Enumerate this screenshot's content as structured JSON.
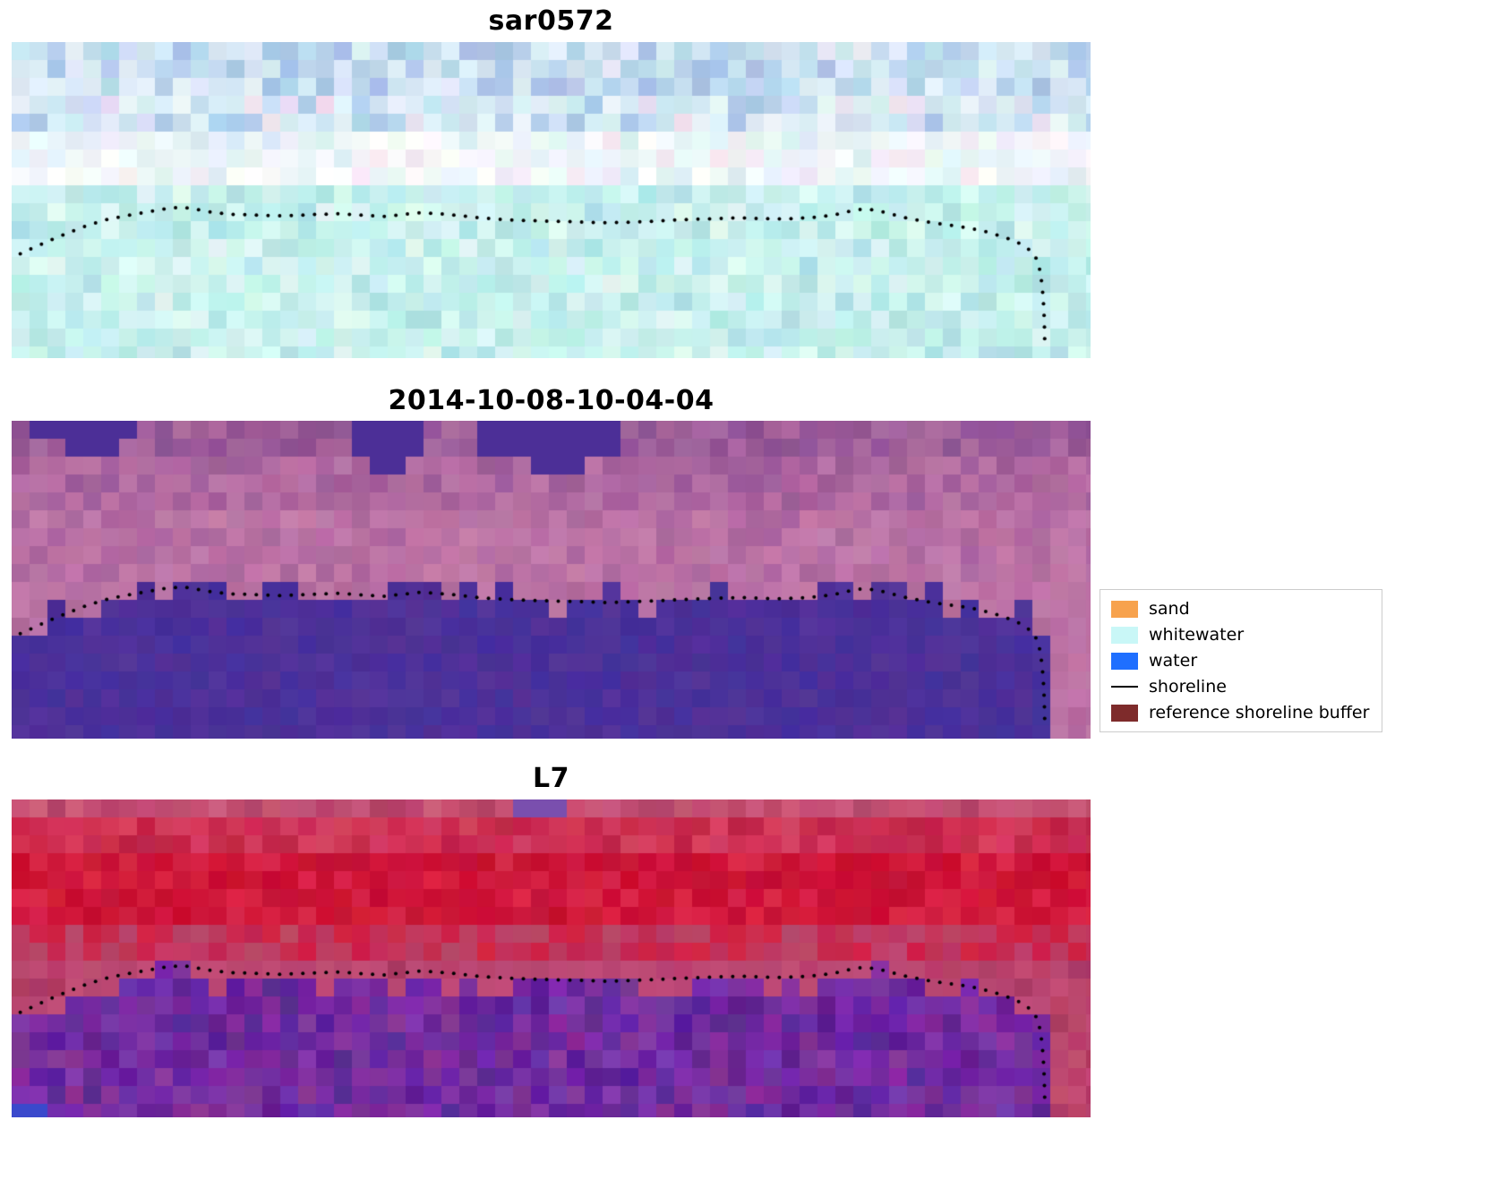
{
  "page": {
    "background": "#ffffff"
  },
  "chart_data": {
    "type": "heatmap",
    "description": "Three stacked pixelated coastal image panels with the same detected shoreline overlaid as small black dots; a legend at center-right explains classification colors.",
    "panels": [
      {
        "title": "sar0572",
        "seed": 7,
        "block_size": 20,
        "band_jitter": 7,
        "bands": [
          {
            "until": 0.14,
            "colors": [
              "#cfe4f2",
              "#b9cfec",
              "#a8c2e6",
              "#d9e9f6",
              "#c2dcf0",
              "#e3eef8",
              "#b3d6ea"
            ]
          },
          {
            "until": 0.3,
            "colors": [
              "#dcedf6",
              "#c9e2f2",
              "#b3d2ec",
              "#ecdff2",
              "#cfe9f0",
              "#abc9e8",
              "#e8f3fa",
              "#d5e0f3"
            ]
          },
          {
            "until": 0.46,
            "colors": [
              "#f3fafc",
              "#e7f4f9",
              "#fdfeff",
              "#ddeef4",
              "#f4ecf6",
              "#eaf7f5",
              "#f0f6fb"
            ]
          },
          {
            "until": 1.01,
            "colors": [
              "#c6f0ed",
              "#baebe8",
              "#d2f5f1",
              "#b0e3e4",
              "#ddf8f4",
              "#c9f2ef",
              "#bfeeec",
              "#cdf4ef"
            ]
          }
        ],
        "water": null,
        "patches": []
      },
      {
        "title": "2014-10-08-10-04-04",
        "seed": 21,
        "block_size": 20,
        "band_jitter": 5,
        "bands": [
          {
            "until": 0.12,
            "colors": [
              "#9a5a96",
              "#a3629c",
              "#8e5192",
              "#ab6aa0",
              "#96569a"
            ]
          },
          {
            "until": 0.3,
            "colors": [
              "#aa639c",
              "#b46ca2",
              "#9f5c98",
              "#ba73a6",
              "#a4609c",
              "#af68a0"
            ]
          },
          {
            "until": 0.48,
            "colors": [
              "#b86fa4",
              "#c078aa",
              "#ad669e",
              "#bb74a5",
              "#c47cab",
              "#b26aa0"
            ]
          },
          {
            "until": 1.01,
            "colors": [
              "#b86fa2",
              "#c078a8",
              "#b2689b",
              "#bd75a6"
            ]
          }
        ],
        "water": {
          "colors": [
            "#4c2f97",
            "#46309c",
            "#523399"
          ],
          "jitter": 5,
          "offset": -0.02,
          "noise": 0.045
        },
        "patches": [
          {
            "x": 0.014,
            "y": 0.0,
            "w": 0.092,
            "h": 0.075,
            "color": "#4c2f97"
          },
          {
            "x": 0.048,
            "y": 0.075,
            "w": 0.058,
            "h": 0.055,
            "color": "#4c2f97"
          },
          {
            "x": 0.318,
            "y": 0.0,
            "w": 0.07,
            "h": 0.1,
            "color": "#4c2f97"
          },
          {
            "x": 0.332,
            "y": 0.1,
            "w": 0.026,
            "h": 0.045,
            "color": "#4c2f97"
          },
          {
            "x": 0.431,
            "y": 0.0,
            "w": 0.125,
            "h": 0.085,
            "color": "#4c2f97"
          },
          {
            "x": 0.482,
            "y": 0.085,
            "w": 0.056,
            "h": 0.065,
            "color": "#4c2f97"
          }
        ]
      },
      {
        "title": "L7",
        "seed": 99,
        "block_size": 20,
        "band_jitter": 6,
        "bands": [
          {
            "until": 0.08,
            "colors": [
              "#bf4a6e",
              "#c75375",
              "#b44367",
              "#cb5c7c",
              "#c34e72"
            ]
          },
          {
            "until": 0.17,
            "colors": [
              "#c92a4e",
              "#d23355",
              "#c02448",
              "#d63f60",
              "#cd2e52"
            ]
          },
          {
            "until": 0.4,
            "colors": [
              "#cc1034",
              "#d41b3e",
              "#c60d2f",
              "#da2647",
              "#c81236",
              "#d01a3a"
            ]
          },
          {
            "until": 0.52,
            "colors": [
              "#c72950",
              "#bd3a63",
              "#d02146",
              "#b94468",
              "#c33058"
            ]
          },
          {
            "until": 1.01,
            "colors": [
              "#b8406a",
              "#c14a72",
              "#ad3a62",
              "#bc456e"
            ]
          }
        ],
        "water": {
          "colors": [
            "#6d2aa2",
            "#7b32a8",
            "#5f2496",
            "#84309b"
          ],
          "jitter": 12,
          "offset": 0.015,
          "noise": 0.035,
          "halo": "#c04f7c",
          "haloDepth": 0.06
        },
        "patches": [
          {
            "x": 0.458,
            "y": 0.0,
            "w": 0.055,
            "h": 0.05,
            "color": "#7a4fae"
          },
          {
            "x": 0.004,
            "y": 0.952,
            "w": 0.032,
            "h": 0.045,
            "color": "#3a49cc"
          }
        ]
      }
    ],
    "shoreline_points": [
      [
        0.008,
        0.67
      ],
      [
        0.022,
        0.648
      ],
      [
        0.038,
        0.624
      ],
      [
        0.055,
        0.6
      ],
      [
        0.072,
        0.578
      ],
      [
        0.09,
        0.56
      ],
      [
        0.108,
        0.548
      ],
      [
        0.125,
        0.538
      ],
      [
        0.142,
        0.528
      ],
      [
        0.158,
        0.522
      ],
      [
        0.172,
        0.53
      ],
      [
        0.188,
        0.54
      ],
      [
        0.205,
        0.545
      ],
      [
        0.225,
        0.547
      ],
      [
        0.245,
        0.55
      ],
      [
        0.265,
        0.548
      ],
      [
        0.285,
        0.545
      ],
      [
        0.305,
        0.543
      ],
      [
        0.325,
        0.548
      ],
      [
        0.345,
        0.552
      ],
      [
        0.362,
        0.546
      ],
      [
        0.378,
        0.54
      ],
      [
        0.395,
        0.543
      ],
      [
        0.412,
        0.548
      ],
      [
        0.43,
        0.555
      ],
      [
        0.448,
        0.56
      ],
      [
        0.465,
        0.563
      ],
      [
        0.482,
        0.565
      ],
      [
        0.5,
        0.567
      ],
      [
        0.518,
        0.568
      ],
      [
        0.535,
        0.57
      ],
      [
        0.552,
        0.572
      ],
      [
        0.57,
        0.57
      ],
      [
        0.588,
        0.568
      ],
      [
        0.605,
        0.565
      ],
      [
        0.622,
        0.562
      ],
      [
        0.64,
        0.56
      ],
      [
        0.658,
        0.558
      ],
      [
        0.675,
        0.556
      ],
      [
        0.692,
        0.558
      ],
      [
        0.71,
        0.56
      ],
      [
        0.728,
        0.558
      ],
      [
        0.745,
        0.554
      ],
      [
        0.762,
        0.547
      ],
      [
        0.776,
        0.536
      ],
      [
        0.789,
        0.528
      ],
      [
        0.801,
        0.532
      ],
      [
        0.815,
        0.544
      ],
      [
        0.83,
        0.557
      ],
      [
        0.845,
        0.567
      ],
      [
        0.86,
        0.575
      ],
      [
        0.875,
        0.582
      ],
      [
        0.89,
        0.59
      ],
      [
        0.903,
        0.6
      ],
      [
        0.915,
        0.612
      ],
      [
        0.926,
        0.625
      ],
      [
        0.936,
        0.64
      ],
      [
        0.944,
        0.659
      ],
      [
        0.949,
        0.68
      ],
      [
        0.9523,
        0.71
      ],
      [
        0.954,
        0.742
      ],
      [
        0.9552,
        0.775
      ],
      [
        0.956,
        0.808
      ],
      [
        0.9566,
        0.84
      ],
      [
        0.957,
        0.872
      ],
      [
        0.9573,
        0.905
      ],
      [
        0.9575,
        0.94
      ],
      [
        0.9577,
        0.968
      ]
    ],
    "legend": {
      "position": "center right",
      "items": [
        {
          "label": "sand",
          "swatch": "#f7a24d",
          "kind": "patch"
        },
        {
          "label": "whitewater",
          "swatch": "#c9f7f7",
          "kind": "patch"
        },
        {
          "label": "water",
          "swatch": "#1f6fff",
          "kind": "patch"
        },
        {
          "label": "shoreline",
          "swatch": "#000000",
          "kind": "line"
        },
        {
          "label": "reference shoreline buffer",
          "swatch": "#7e2b2b",
          "kind": "patch"
        }
      ]
    }
  }
}
